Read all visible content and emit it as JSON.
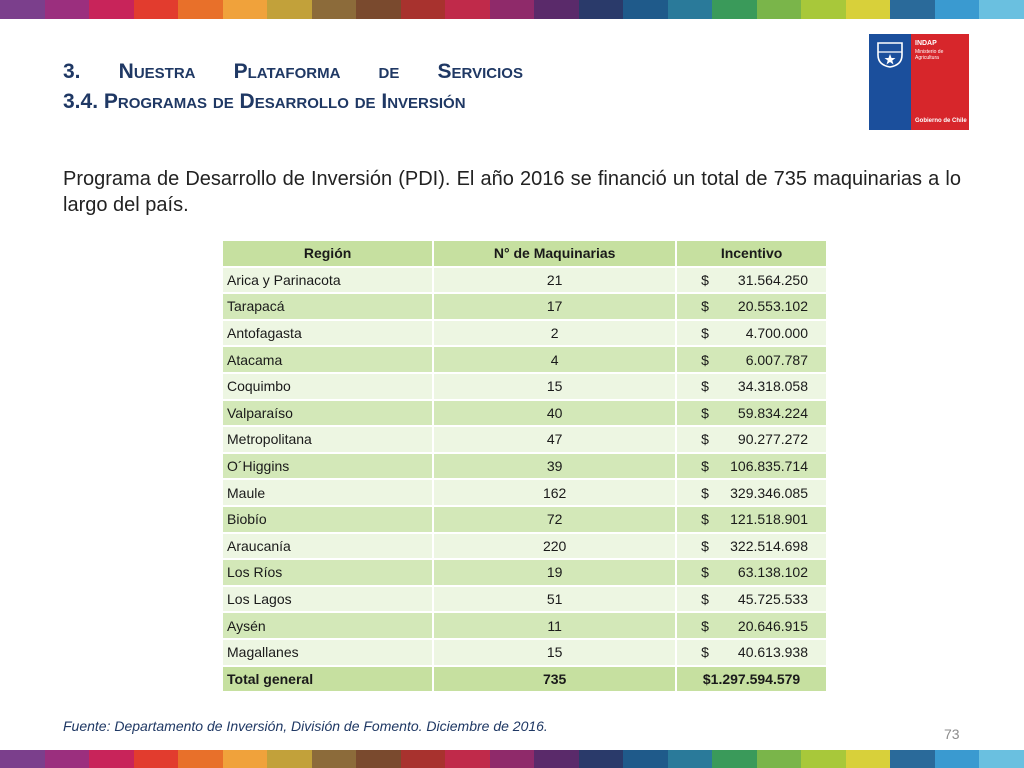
{
  "stripe_colors": [
    "#7b3f8c",
    "#9b2f7e",
    "#c8245a",
    "#e23c2e",
    "#e8702a",
    "#f0a23b",
    "#c2a13a",
    "#8c6b3a",
    "#7a4a2e",
    "#a8322e",
    "#c02a4a",
    "#8f2a6a",
    "#5a2a6a",
    "#2a3a6a",
    "#1f5a8a",
    "#2a7a9a",
    "#3a9a5a",
    "#7ab54a",
    "#a8c83a",
    "#d8d03a",
    "#2a6a9a",
    "#3a9ad0",
    "#6ac0e0"
  ],
  "header": {
    "title_line1_words": [
      "3.",
      "Nuestra",
      "Plataforma",
      "de",
      "Servicios"
    ],
    "title_line2": "3.4. Programas de Desarrollo de Inversión"
  },
  "logo": {
    "brand": "INDAP",
    "sub1": "Ministerio de",
    "sub2": "Agricultura",
    "gov": "Gobierno de Chile",
    "colors": {
      "blue": "#1b4f9c",
      "red": "#d7262b"
    }
  },
  "intro": "Programa de Desarrollo de Inversión (PDI). El año 2016 se financió un total de 735 maquinarias a lo largo del país.",
  "table": {
    "headers": [
      "Región",
      "N° de Maquinarias",
      "Incentivo"
    ],
    "rows": [
      {
        "region": "Arica y Parinacota",
        "count": "21",
        "currency": "$",
        "amount": "31.564.250"
      },
      {
        "region": "Tarapacá",
        "count": "17",
        "currency": "$",
        "amount": "20.553.102"
      },
      {
        "region": "Antofagasta",
        "count": "2",
        "currency": "$",
        "amount": "4.700.000"
      },
      {
        "region": "Atacama",
        "count": "4",
        "currency": "$",
        "amount": "6.007.787"
      },
      {
        "region": "Coquimbo",
        "count": "15",
        "currency": "$",
        "amount": "34.318.058"
      },
      {
        "region": "Valparaíso",
        "count": "40",
        "currency": "$",
        "amount": "59.834.224"
      },
      {
        "region": "Metropolitana",
        "count": "47",
        "currency": "$",
        "amount": "90.277.272"
      },
      {
        "region": "O´Higgins",
        "count": "39",
        "currency": "$",
        "amount": "106.835.714"
      },
      {
        "region": "Maule",
        "count": "162",
        "currency": "$",
        "amount": "329.346.085"
      },
      {
        "region": "Biobío",
        "count": "72",
        "currency": "$",
        "amount": "121.518.901"
      },
      {
        "region": "Araucanía",
        "count": "220",
        "currency": "$",
        "amount": "322.514.698"
      },
      {
        "region": "Los Ríos",
        "count": "19",
        "currency": "$",
        "amount": "63.138.102"
      },
      {
        "region": "Los Lagos",
        "count": "51",
        "currency": "$",
        "amount": "45.725.533"
      },
      {
        "region": "Aysén",
        "count": "11",
        "currency": "$",
        "amount": "20.646.915"
      },
      {
        "region": "Magallanes",
        "count": "15",
        "currency": "$",
        "amount": "40.613.938"
      }
    ],
    "total": {
      "region": "Total general",
      "count": "735",
      "amount": "$1.297.594.579"
    }
  },
  "source": "Fuente: Departamento de Inversión, División de Fomento. Diciembre de 2016.",
  "page_number": "73"
}
